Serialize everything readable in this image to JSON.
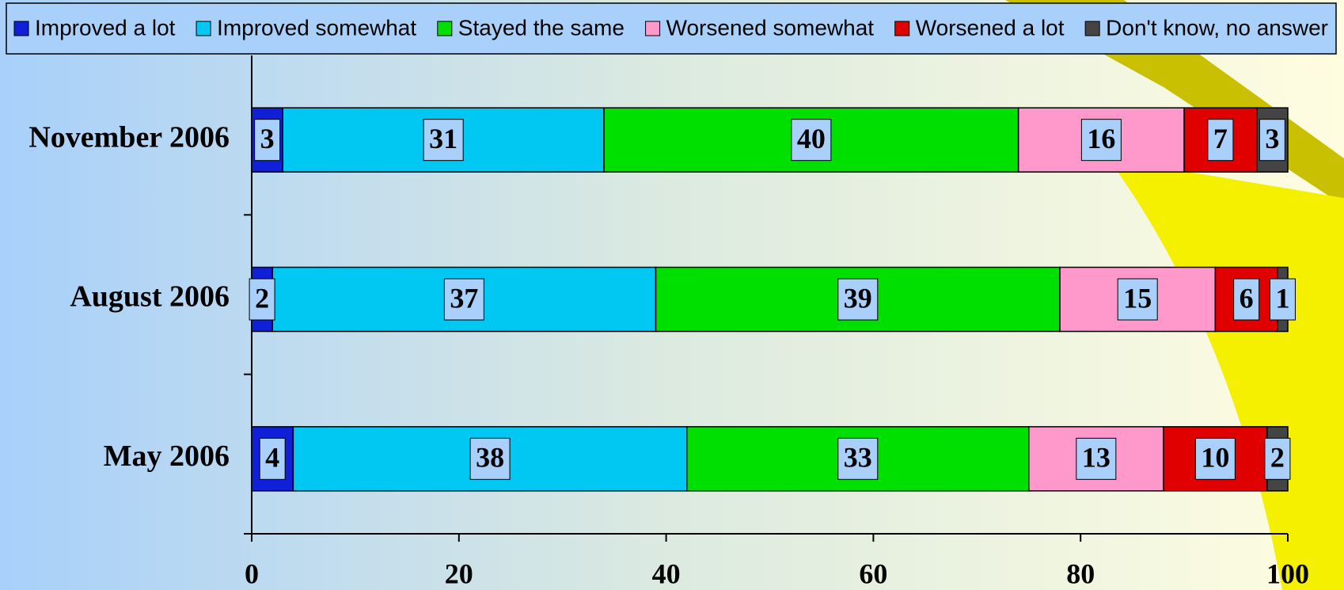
{
  "chart_data": {
    "type": "stacked_bar_horizontal",
    "categories": [
      "November 2006",
      "August 2006",
      "May 2006"
    ],
    "series": [
      {
        "name": "Improved a lot",
        "color": "#1020d8",
        "values": [
          3,
          2,
          4
        ]
      },
      {
        "name": "Improved somewhat",
        "color": "#00c8f2",
        "values": [
          31,
          37,
          38
        ]
      },
      {
        "name": "Stayed the same",
        "color": "#00e000",
        "values": [
          40,
          39,
          33
        ]
      },
      {
        "name": "Worsened somewhat",
        "color": "#ff99cc",
        "values": [
          16,
          15,
          13
        ]
      },
      {
        "name": "Worsened a lot",
        "color": "#e00000",
        "values": [
          7,
          6,
          10
        ]
      },
      {
        "name": "Don't know, no answer",
        "color": "#444444",
        "values": [
          3,
          1,
          2
        ]
      }
    ],
    "xlim": [
      0,
      100
    ],
    "xticks": [
      0,
      20,
      40,
      60,
      80,
      100
    ],
    "legend": "top"
  }
}
